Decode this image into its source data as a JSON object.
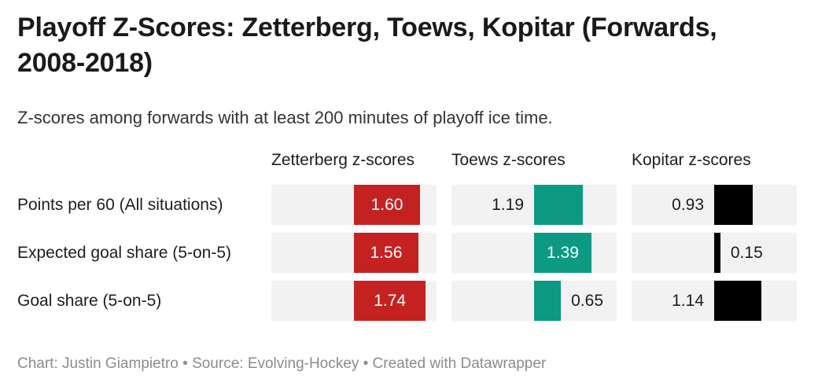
{
  "header": {
    "title": "Playoff Z-Scores: Zetterberg, Toews, Kopitar (Forwards, 2008-2018)",
    "subtitle": "Z-scores among forwards with at least 200 minutes of playoff ice time."
  },
  "chart_data": {
    "type": "bar",
    "orientation": "horizontal",
    "title": "Playoff Z-Scores: Zetterberg, Toews, Kopitar (Forwards, 2008-2018)",
    "subtitle": "Z-scores among forwards with at least 200 minutes of playoff ice time.",
    "categories": [
      "Points per 60 (All situations)",
      "Expected goal share (5-on-5)",
      "Goal share (5-on-5)"
    ],
    "series": [
      {
        "name": "Zetterberg z-scores",
        "color": "#c42220",
        "values": [
          1.6,
          1.56,
          1.74
        ],
        "display": [
          "1.60",
          "1.56",
          "1.74"
        ],
        "label_pos": [
          "inside",
          "inside",
          "inside"
        ]
      },
      {
        "name": "Toews z-scores",
        "color": "#0d9a83",
        "values": [
          1.19,
          1.39,
          0.65
        ],
        "display": [
          "1.19",
          "1.39",
          "0.65"
        ],
        "label_pos": [
          "left",
          "inside",
          "right"
        ]
      },
      {
        "name": "Kopitar z-scores",
        "color": "#000000",
        "values": [
          0.93,
          0.15,
          1.14
        ],
        "display": [
          "0.93",
          "0.15",
          "1.14"
        ],
        "label_pos": [
          "left",
          "right",
          "left"
        ]
      }
    ],
    "xlim": [
      0,
      2
    ],
    "baseline": "center-of-cell",
    "grid": "off",
    "legend_position": "column-headers",
    "cell_background": "#f2f2f2",
    "value_label_color_inside": "#ffffff",
    "value_label_color_outside": "#1d1d1d"
  },
  "footer": {
    "text": "Chart: Justin Giampietro • Source: Evolving-Hockey • Created with Datawrapper"
  }
}
